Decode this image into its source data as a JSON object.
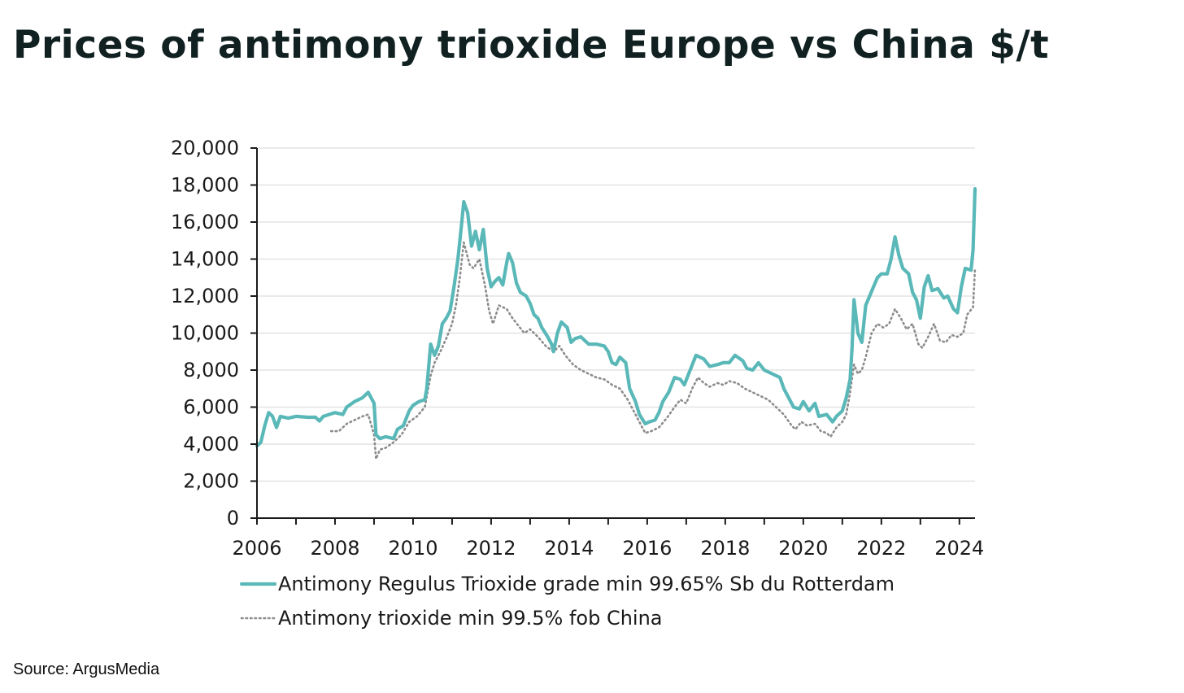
{
  "title": "Prices of antimony trioxide Europe vs China $/t",
  "source": "Source: ArgusMedia",
  "colors": {
    "title": "#112021",
    "rotterdam": "#5ab8b8",
    "china": "#8c8c8c",
    "grid": "#e4e4e4",
    "axis": "#1a1a1a"
  },
  "chart_data": {
    "type": "line",
    "title": "Prices of antimony trioxide Europe vs China $/t",
    "xlabel": "",
    "ylabel": "",
    "xlim": [
      2006,
      2024.4
    ],
    "ylim": [
      0,
      20000
    ],
    "grid": true,
    "legend_position": "bottom",
    "y_ticks": [
      0,
      2000,
      4000,
      6000,
      8000,
      10000,
      12000,
      14000,
      16000,
      18000,
      20000
    ],
    "y_tick_labels": [
      "0",
      "2,000",
      "4,000",
      "6,000",
      "8,000",
      "10,000",
      "12,000",
      "14,000",
      "16,000",
      "18,000",
      "20,000"
    ],
    "x_ticks": [
      2006,
      2008,
      2010,
      2012,
      2014,
      2016,
      2018,
      2020,
      2022,
      2024
    ],
    "x_tick_labels": [
      "2006",
      "2008",
      "2010",
      "2012",
      "2014",
      "2016",
      "2018",
      "2020",
      "2022",
      "2024"
    ],
    "series": [
      {
        "name": "Antimony Regulus Trioxide grade min 99.65% Sb du Rotterdam",
        "style": "solid",
        "color": "#5ab8b8",
        "points": [
          [
            2006.0,
            3900
          ],
          [
            2006.1,
            4100
          ],
          [
            2006.2,
            5000
          ],
          [
            2006.3,
            5700
          ],
          [
            2006.4,
            5500
          ],
          [
            2006.5,
            4900
          ],
          [
            2006.6,
            5500
          ],
          [
            2006.8,
            5400
          ],
          [
            2007.0,
            5500
          ],
          [
            2007.3,
            5450
          ],
          [
            2007.5,
            5450
          ],
          [
            2007.6,
            5250
          ],
          [
            2007.7,
            5500
          ],
          [
            2008.0,
            5700
          ],
          [
            2008.2,
            5600
          ],
          [
            2008.3,
            6000
          ],
          [
            2008.5,
            6300
          ],
          [
            2008.7,
            6500
          ],
          [
            2008.85,
            6800
          ],
          [
            2009.0,
            6200
          ],
          [
            2009.05,
            4500
          ],
          [
            2009.15,
            4300
          ],
          [
            2009.3,
            4400
          ],
          [
            2009.5,
            4300
          ],
          [
            2009.6,
            4800
          ],
          [
            2009.75,
            5000
          ],
          [
            2009.9,
            5800
          ],
          [
            2010.0,
            6100
          ],
          [
            2010.15,
            6300
          ],
          [
            2010.3,
            6400
          ],
          [
            2010.35,
            7000
          ],
          [
            2010.45,
            9400
          ],
          [
            2010.55,
            8800
          ],
          [
            2010.65,
            9300
          ],
          [
            2010.75,
            10500
          ],
          [
            2010.85,
            10800
          ],
          [
            2010.95,
            11200
          ],
          [
            2011.05,
            12500
          ],
          [
            2011.15,
            14000
          ],
          [
            2011.25,
            16000
          ],
          [
            2011.3,
            17100
          ],
          [
            2011.4,
            16500
          ],
          [
            2011.5,
            14700
          ],
          [
            2011.6,
            15500
          ],
          [
            2011.7,
            14500
          ],
          [
            2011.8,
            15600
          ],
          [
            2011.9,
            13500
          ],
          [
            2012.0,
            12500
          ],
          [
            2012.1,
            12800
          ],
          [
            2012.2,
            13000
          ],
          [
            2012.3,
            12600
          ],
          [
            2012.4,
            13800
          ],
          [
            2012.45,
            14300
          ],
          [
            2012.55,
            13800
          ],
          [
            2012.65,
            12700
          ],
          [
            2012.75,
            12200
          ],
          [
            2012.9,
            12000
          ],
          [
            2013.0,
            11600
          ],
          [
            2013.1,
            11000
          ],
          [
            2013.2,
            10800
          ],
          [
            2013.3,
            10300
          ],
          [
            2013.45,
            9800
          ],
          [
            2013.55,
            9400
          ],
          [
            2013.6,
            9000
          ],
          [
            2013.7,
            10000
          ],
          [
            2013.8,
            10600
          ],
          [
            2013.95,
            10300
          ],
          [
            2014.05,
            9500
          ],
          [
            2014.15,
            9700
          ],
          [
            2014.3,
            9800
          ],
          [
            2014.5,
            9400
          ],
          [
            2014.7,
            9400
          ],
          [
            2014.9,
            9300
          ],
          [
            2015.0,
            9000
          ],
          [
            2015.1,
            8400
          ],
          [
            2015.2,
            8300
          ],
          [
            2015.3,
            8700
          ],
          [
            2015.45,
            8400
          ],
          [
            2015.55,
            7000
          ],
          [
            2015.7,
            6300
          ],
          [
            2015.8,
            5600
          ],
          [
            2015.95,
            5100
          ],
          [
            2016.05,
            5200
          ],
          [
            2016.2,
            5300
          ],
          [
            2016.3,
            5700
          ],
          [
            2016.4,
            6300
          ],
          [
            2016.55,
            6800
          ],
          [
            2016.7,
            7600
          ],
          [
            2016.85,
            7500
          ],
          [
            2016.95,
            7200
          ],
          [
            2017.1,
            8000
          ],
          [
            2017.25,
            8800
          ],
          [
            2017.45,
            8600
          ],
          [
            2017.6,
            8200
          ],
          [
            2017.8,
            8300
          ],
          [
            2017.95,
            8400
          ],
          [
            2018.1,
            8400
          ],
          [
            2018.25,
            8800
          ],
          [
            2018.45,
            8500
          ],
          [
            2018.55,
            8100
          ],
          [
            2018.7,
            8000
          ],
          [
            2018.85,
            8400
          ],
          [
            2019.0,
            8000
          ],
          [
            2019.2,
            7800
          ],
          [
            2019.4,
            7600
          ],
          [
            2019.5,
            7000
          ],
          [
            2019.6,
            6600
          ],
          [
            2019.75,
            6000
          ],
          [
            2019.9,
            5900
          ],
          [
            2020.0,
            6300
          ],
          [
            2020.15,
            5800
          ],
          [
            2020.3,
            6200
          ],
          [
            2020.4,
            5500
          ],
          [
            2020.6,
            5600
          ],
          [
            2020.75,
            5200
          ],
          [
            2020.85,
            5500
          ],
          [
            2021.0,
            5800
          ],
          [
            2021.1,
            6500
          ],
          [
            2021.2,
            7500
          ],
          [
            2021.25,
            9200
          ],
          [
            2021.3,
            11800
          ],
          [
            2021.4,
            10000
          ],
          [
            2021.5,
            9500
          ],
          [
            2021.6,
            11500
          ],
          [
            2021.7,
            12000
          ],
          [
            2021.8,
            12500
          ],
          [
            2021.9,
            13000
          ],
          [
            2022.0,
            13200
          ],
          [
            2022.15,
            13200
          ],
          [
            2022.25,
            14000
          ],
          [
            2022.35,
            15200
          ],
          [
            2022.45,
            14200
          ],
          [
            2022.55,
            13500
          ],
          [
            2022.7,
            13200
          ],
          [
            2022.8,
            12200
          ],
          [
            2022.9,
            11800
          ],
          [
            2023.0,
            10800
          ],
          [
            2023.1,
            12500
          ],
          [
            2023.2,
            13100
          ],
          [
            2023.3,
            12300
          ],
          [
            2023.45,
            12400
          ],
          [
            2023.6,
            11900
          ],
          [
            2023.7,
            12000
          ],
          [
            2023.85,
            11300
          ],
          [
            2023.95,
            11100
          ],
          [
            2024.05,
            12500
          ],
          [
            2024.15,
            13500
          ],
          [
            2024.3,
            13400
          ],
          [
            2024.35,
            14500
          ],
          [
            2024.4,
            17800
          ]
        ]
      },
      {
        "name": "Antimony trioxide min 99.5% fob China",
        "style": "dotted",
        "color": "#8c8c8c",
        "points": [
          [
            2007.9,
            4700
          ],
          [
            2008.1,
            4700
          ],
          [
            2008.3,
            5100
          ],
          [
            2008.5,
            5300
          ],
          [
            2008.7,
            5500
          ],
          [
            2008.85,
            5600
          ],
          [
            2009.0,
            4500
          ],
          [
            2009.05,
            3200
          ],
          [
            2009.15,
            3700
          ],
          [
            2009.3,
            3800
          ],
          [
            2009.5,
            4100
          ],
          [
            2009.7,
            4500
          ],
          [
            2009.9,
            5200
          ],
          [
            2010.1,
            5500
          ],
          [
            2010.3,
            6000
          ],
          [
            2010.45,
            7700
          ],
          [
            2010.55,
            8400
          ],
          [
            2010.7,
            9000
          ],
          [
            2010.85,
            9700
          ],
          [
            2011.0,
            10500
          ],
          [
            2011.1,
            11500
          ],
          [
            2011.2,
            13000
          ],
          [
            2011.3,
            14900
          ],
          [
            2011.45,
            13700
          ],
          [
            2011.55,
            13500
          ],
          [
            2011.7,
            14000
          ],
          [
            2011.85,
            12500
          ],
          [
            2011.95,
            11200
          ],
          [
            2012.05,
            10500
          ],
          [
            2012.2,
            11500
          ],
          [
            2012.4,
            11300
          ],
          [
            2012.55,
            10800
          ],
          [
            2012.7,
            10400
          ],
          [
            2012.85,
            10000
          ],
          [
            2013.0,
            10200
          ],
          [
            2013.2,
            9800
          ],
          [
            2013.4,
            9300
          ],
          [
            2013.6,
            9000
          ],
          [
            2013.75,
            9300
          ],
          [
            2013.9,
            8800
          ],
          [
            2014.1,
            8300
          ],
          [
            2014.3,
            8000
          ],
          [
            2014.5,
            7800
          ],
          [
            2014.7,
            7600
          ],
          [
            2014.9,
            7500
          ],
          [
            2015.1,
            7200
          ],
          [
            2015.3,
            7000
          ],
          [
            2015.5,
            6400
          ],
          [
            2015.7,
            5600
          ],
          [
            2015.85,
            5000
          ],
          [
            2015.95,
            4600
          ],
          [
            2016.1,
            4700
          ],
          [
            2016.3,
            4900
          ],
          [
            2016.5,
            5400
          ],
          [
            2016.7,
            6000
          ],
          [
            2016.85,
            6400
          ],
          [
            2017.0,
            6200
          ],
          [
            2017.15,
            7000
          ],
          [
            2017.3,
            7600
          ],
          [
            2017.45,
            7300
          ],
          [
            2017.6,
            7100
          ],
          [
            2017.8,
            7300
          ],
          [
            2017.95,
            7200
          ],
          [
            2018.1,
            7400
          ],
          [
            2018.3,
            7300
          ],
          [
            2018.5,
            7000
          ],
          [
            2018.7,
            6800
          ],
          [
            2018.9,
            6600
          ],
          [
            2019.1,
            6400
          ],
          [
            2019.3,
            6000
          ],
          [
            2019.5,
            5600
          ],
          [
            2019.7,
            5000
          ],
          [
            2019.8,
            4800
          ],
          [
            2019.95,
            5200
          ],
          [
            2020.1,
            5000
          ],
          [
            2020.3,
            5100
          ],
          [
            2020.45,
            4700
          ],
          [
            2020.6,
            4600
          ],
          [
            2020.7,
            4400
          ],
          [
            2020.85,
            4900
          ],
          [
            2021.0,
            5200
          ],
          [
            2021.1,
            5600
          ],
          [
            2021.2,
            6800
          ],
          [
            2021.3,
            8300
          ],
          [
            2021.4,
            7800
          ],
          [
            2021.5,
            8000
          ],
          [
            2021.6,
            8700
          ],
          [
            2021.75,
            10000
          ],
          [
            2021.9,
            10500
          ],
          [
            2022.05,
            10300
          ],
          [
            2022.2,
            10500
          ],
          [
            2022.35,
            11300
          ],
          [
            2022.5,
            10800
          ],
          [
            2022.65,
            10200
          ],
          [
            2022.8,
            10500
          ],
          [
            2022.95,
            9400
          ],
          [
            2023.05,
            9200
          ],
          [
            2023.2,
            9800
          ],
          [
            2023.35,
            10500
          ],
          [
            2023.5,
            9600
          ],
          [
            2023.65,
            9500
          ],
          [
            2023.8,
            9900
          ],
          [
            2023.95,
            9800
          ],
          [
            2024.1,
            10000
          ],
          [
            2024.2,
            11000
          ],
          [
            2024.35,
            11400
          ],
          [
            2024.4,
            13500
          ]
        ]
      }
    ]
  }
}
